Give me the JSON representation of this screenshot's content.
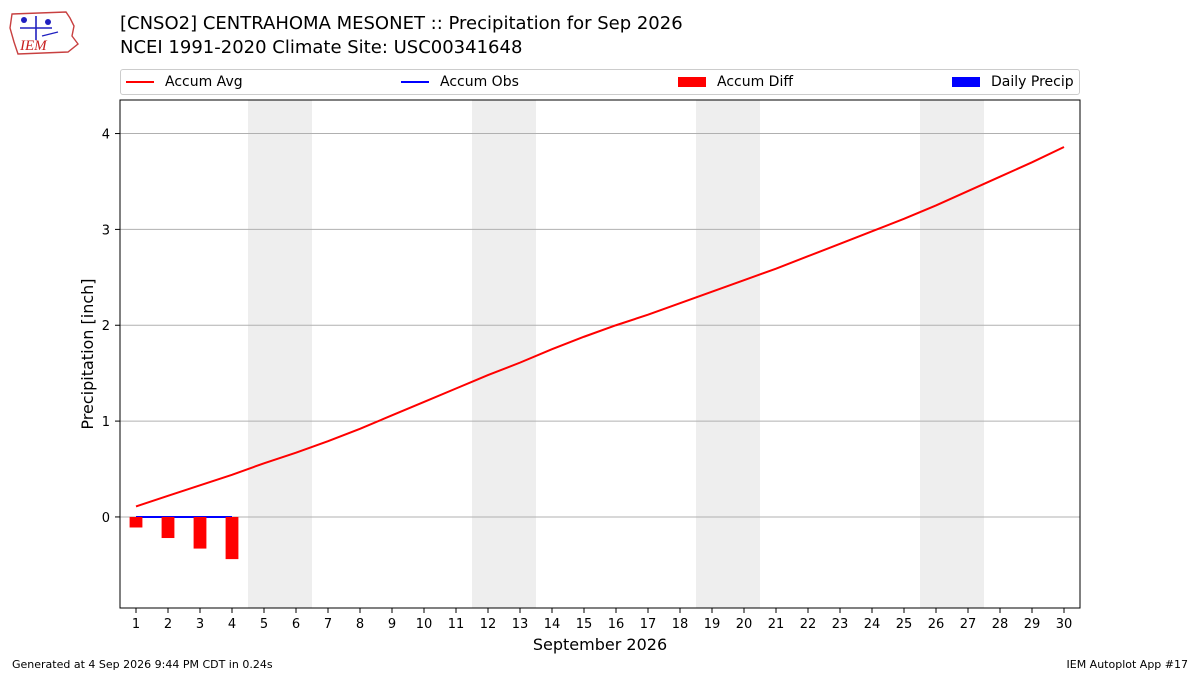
{
  "header": {
    "title_line1": "[CNSO2] CENTRAHOMA MESONET :: Precipitation for Sep 2026",
    "title_line2": "NCEI 1991-2020 Climate Site: USC00341648",
    "logo_text": "IEM"
  },
  "legend": {
    "items": [
      {
        "label": "Accum Avg",
        "kind": "line",
        "color": "#ff0000"
      },
      {
        "label": "Accum Obs",
        "kind": "line",
        "color": "#0000ff"
      },
      {
        "label": "Accum Diff",
        "kind": "patch",
        "color": "#ff0000"
      },
      {
        "label": "Daily Precip",
        "kind": "patch",
        "color": "#0000ff"
      }
    ]
  },
  "footer": {
    "generated": "Generated at 4 Sep 2026 9:44 PM CDT in 0.24s",
    "app": "IEM Autoplot App #17"
  },
  "chart_data": {
    "type": "line",
    "xlabel": "September 2026",
    "ylabel": "Precipitation [inch]",
    "xlim": [
      0.5,
      30.5
    ],
    "ylim": [
      -0.95,
      4.35
    ],
    "x_ticks": [
      1,
      2,
      3,
      4,
      5,
      6,
      7,
      8,
      9,
      10,
      11,
      12,
      13,
      14,
      15,
      16,
      17,
      18,
      19,
      20,
      21,
      22,
      23,
      24,
      25,
      26,
      27,
      28,
      29,
      30
    ],
    "y_ticks": [
      0,
      1,
      2,
      3,
      4
    ],
    "grid": "y",
    "weekend_shading": [
      [
        4.5,
        6.5
      ],
      [
        11.5,
        13.5
      ],
      [
        18.5,
        20.5
      ],
      [
        25.5,
        27.5
      ]
    ],
    "weekend_color": "#eeeeee",
    "series": [
      {
        "name": "Accum Avg",
        "type": "line",
        "color": "#ff0000",
        "x": [
          1,
          2,
          3,
          4,
          5,
          6,
          7,
          8,
          9,
          10,
          11,
          12,
          13,
          14,
          15,
          16,
          17,
          18,
          19,
          20,
          21,
          22,
          23,
          24,
          25,
          26,
          27,
          28,
          29,
          30
        ],
        "values": [
          0.11,
          0.22,
          0.33,
          0.44,
          0.56,
          0.67,
          0.79,
          0.92,
          1.06,
          1.2,
          1.34,
          1.48,
          1.61,
          1.75,
          1.88,
          2.0,
          2.11,
          2.23,
          2.35,
          2.47,
          2.59,
          2.72,
          2.85,
          2.98,
          3.11,
          3.25,
          3.4,
          3.55,
          3.7,
          3.86
        ]
      },
      {
        "name": "Accum Obs",
        "type": "line",
        "color": "#0000ff",
        "x": [
          1,
          2,
          3,
          4
        ],
        "values": [
          0.0,
          0.0,
          0.0,
          0.0
        ]
      },
      {
        "name": "Accum Diff",
        "type": "bar",
        "color": "#ff0000",
        "x": [
          1,
          2,
          3,
          4
        ],
        "values": [
          -0.11,
          -0.22,
          -0.33,
          -0.44
        ]
      },
      {
        "name": "Daily Precip",
        "type": "bar",
        "color": "#0000ff",
        "x": [
          1,
          2,
          3,
          4
        ],
        "values": [
          0.0,
          0.0,
          0.0,
          0.0
        ]
      }
    ]
  }
}
